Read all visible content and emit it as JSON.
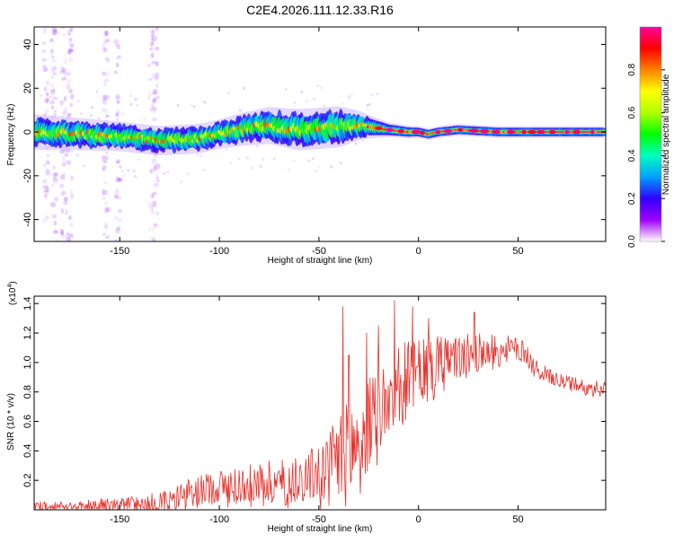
{
  "chart_data": [
    {
      "type": "heatmap",
      "title": "C2E4.2026.111.12.33.R16",
      "xlabel": "Height of straight line (km)",
      "ylabel": "Frequency (Hz)",
      "xlim": [
        -193,
        94
      ],
      "ylim": [
        -50,
        48
      ],
      "x_ticks": [
        -150,
        -100,
        -50,
        0,
        50
      ],
      "y_ticks": [
        -40,
        -20,
        0,
        20,
        40
      ],
      "colorbar": {
        "label": "Normalized spectral amplitude",
        "range": [
          0.0,
          1.0
        ],
        "ticks": [
          "0.0",
          "0.2",
          "0.4",
          "0.6",
          "0.8"
        ],
        "stops": [
          "#ffffff",
          "#a000ff",
          "#3000ff",
          "#00a0ff",
          "#00ffc0",
          "#00ff00",
          "#b0ff00",
          "#ffff00",
          "#ff8000",
          "#ff0000",
          "#ff00a0"
        ]
      },
      "band_centerline": {
        "x": [
          -193,
          -170,
          -150,
          -130,
          -110,
          -90,
          -75,
          -60,
          -45,
          -30,
          -22,
          -15,
          -5,
          0,
          5,
          10,
          20,
          40,
          60,
          80,
          94
        ],
        "y": [
          0,
          -1,
          -2,
          -4,
          -3,
          1,
          3,
          1,
          2,
          3,
          2,
          1,
          0,
          0,
          -1,
          0,
          1,
          0,
          0,
          0,
          0
        ]
      },
      "band_halfwidth_hz": {
        "x": [
          -193,
          -150,
          -100,
          -60,
          -40,
          -25,
          -15,
          0,
          50,
          94
        ],
        "y": [
          6,
          5,
          5,
          7,
          7,
          4,
          2.5,
          2,
          2,
          2
        ]
      },
      "streaks_x": [
        -187,
        -183,
        -178,
        -175,
        -157,
        -151,
        -134,
        -132
      ]
    },
    {
      "type": "line",
      "xlabel": "Height of straight line (km)",
      "ylabel": "SNR (10 * v/v)",
      "yscale_label": "(x10",
      "yscale_exp": "4",
      "scale_close": ")",
      "xlim": [
        -193,
        94
      ],
      "ylim": [
        0,
        1.45
      ],
      "x_ticks": [
        -150,
        -100,
        -50,
        0,
        50
      ],
      "y_ticks": [
        0.2,
        0.4,
        0.6,
        0.8,
        1.0,
        1.2,
        1.4
      ],
      "line_color": "#e8302a",
      "envelope": {
        "x": [
          -193,
          -175,
          -160,
          -140,
          -125,
          -115,
          -100,
          -80,
          -65,
          -55,
          -45,
          -40,
          -35,
          -30,
          -25,
          -20,
          -15,
          -10,
          -5,
          0,
          5,
          10,
          20,
          30,
          40,
          50,
          55,
          60,
          70,
          80,
          90,
          94
        ],
        "base": [
          0.03,
          0.03,
          0.04,
          0.05,
          0.08,
          0.13,
          0.17,
          0.2,
          0.22,
          0.25,
          0.3,
          0.38,
          0.42,
          0.5,
          0.6,
          0.72,
          0.82,
          0.9,
          0.92,
          0.95,
          1.0,
          1.02,
          1.05,
          1.08,
          1.1,
          1.1,
          1.06,
          0.95,
          0.88,
          0.85,
          0.83,
          0.83
        ],
        "amp": [
          0.03,
          0.03,
          0.04,
          0.05,
          0.07,
          0.09,
          0.12,
          0.13,
          0.16,
          0.18,
          0.25,
          0.35,
          0.35,
          0.35,
          0.32,
          0.3,
          0.3,
          0.28,
          0.25,
          0.22,
          0.2,
          0.18,
          0.15,
          0.13,
          0.1,
          0.08,
          0.07,
          0.06,
          0.05,
          0.05,
          0.05,
          0.05
        ]
      },
      "spikes": [
        {
          "x": -38,
          "y": 1.38
        },
        {
          "x": -35,
          "y": 1.05
        },
        {
          "x": -26,
          "y": 1.2
        },
        {
          "x": -20,
          "y": 1.25
        },
        {
          "x": -12,
          "y": 1.42
        },
        {
          "x": -3,
          "y": 1.38
        },
        {
          "x": 5,
          "y": 1.3
        },
        {
          "x": 28,
          "y": 1.34
        }
      ]
    }
  ]
}
